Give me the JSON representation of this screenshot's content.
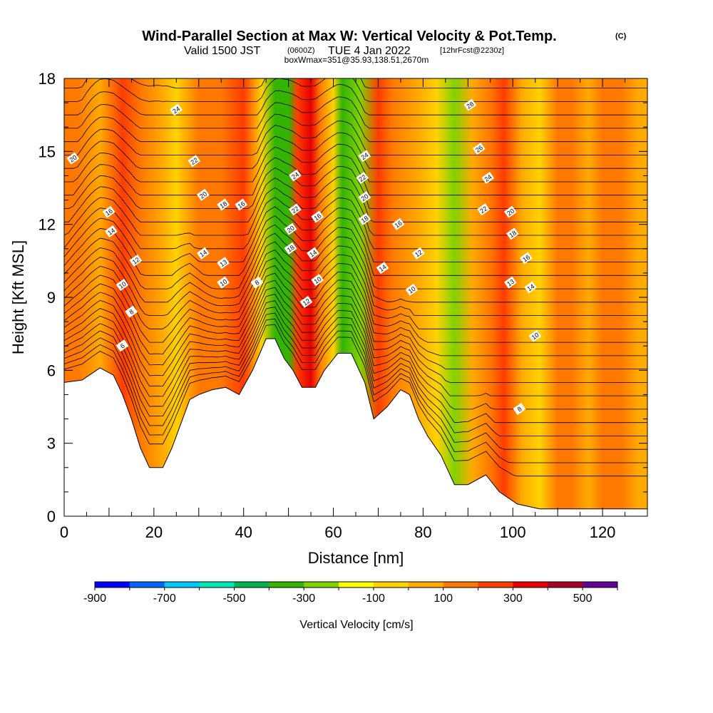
{
  "title": {
    "main": "Wind-Parallel Section at Max W: Vertical Velocity & Pot.Temp.",
    "copyright": "(C)",
    "valid_prefix": "Valid 1500 JST",
    "valid_utc": "(0600Z)",
    "valid_date": "TUE 4 Jan 2022",
    "forecast": "[12hrFcst@2230z]",
    "box": "boxWmax=351@35.93,138.51,2670m"
  },
  "chart_data": {
    "type": "heatmap",
    "xlabel": "Distance [nm]",
    "ylabel": "Height [Kft MSL]",
    "xlim": [
      0,
      130
    ],
    "ylim": [
      0,
      18
    ],
    "x_ticks": [
      0,
      20,
      40,
      60,
      80,
      100,
      120
    ],
    "y_ticks": [
      0,
      3,
      6,
      9,
      12,
      15,
      18
    ],
    "colorbar": {
      "title": "Vertical Velocity [cm/s]",
      "levels": [
        -900,
        -800,
        -700,
        -600,
        -500,
        -400,
        -300,
        -200,
        -100,
        0,
        100,
        200,
        300,
        400,
        500,
        600
      ],
      "tick_labels": [
        -900,
        -700,
        -500,
        -300,
        -100,
        100,
        300,
        500
      ],
      "colors": [
        "#0000ff",
        "#0064ff",
        "#00c8ff",
        "#00e6b4",
        "#00b450",
        "#32b400",
        "#82d200",
        "#ffff00",
        "#ffd200",
        "#ffaa00",
        "#ff7800",
        "#ff3c00",
        "#e60000",
        "#aa0028",
        "#640096"
      ]
    },
    "velocity_bands": [
      {
        "x": 3,
        "w": 180
      },
      {
        "x": 8,
        "w": 30
      },
      {
        "x": 13,
        "w": 260
      },
      {
        "x": 17,
        "w": 160
      },
      {
        "x": 22,
        "w": 30
      },
      {
        "x": 25,
        "w": -80
      },
      {
        "x": 30,
        "w": 160
      },
      {
        "x": 35,
        "w": 120
      },
      {
        "x": 40,
        "w": 200
      },
      {
        "x": 44,
        "w": -50
      },
      {
        "x": 47,
        "w": -310
      },
      {
        "x": 50,
        "w": -330
      },
      {
        "x": 52,
        "w": 280
      },
      {
        "x": 55,
        "w": 351
      },
      {
        "x": 57,
        "w": 150
      },
      {
        "x": 60,
        "w": -40
      },
      {
        "x": 62,
        "w": -330
      },
      {
        "x": 66,
        "w": -300
      },
      {
        "x": 70,
        "w": 220
      },
      {
        "x": 73,
        "w": 110
      },
      {
        "x": 79,
        "w": 80
      },
      {
        "x": 83,
        "w": -80
      },
      {
        "x": 87,
        "w": -210
      },
      {
        "x": 91,
        "w": 80
      },
      {
        "x": 95,
        "w": 150
      },
      {
        "x": 98,
        "w": 260
      },
      {
        "x": 102,
        "w": 80
      },
      {
        "x": 106,
        "w": -60
      },
      {
        "x": 110,
        "w": 100
      },
      {
        "x": 113,
        "w": 180
      },
      {
        "x": 117,
        "w": 30
      },
      {
        "x": 120,
        "w": 140
      },
      {
        "x": 124,
        "w": 160
      },
      {
        "x": 128,
        "w": 20
      }
    ],
    "terrain_height_kft": [
      {
        "x": 0,
        "h": 5.5
      },
      {
        "x": 4,
        "h": 5.6
      },
      {
        "x": 8,
        "h": 6.1
      },
      {
        "x": 11,
        "h": 5.8
      },
      {
        "x": 13,
        "h": 5.0
      },
      {
        "x": 15,
        "h": 4.0
      },
      {
        "x": 17,
        "h": 2.8
      },
      {
        "x": 19,
        "h": 2.0
      },
      {
        "x": 22,
        "h": 2.0
      },
      {
        "x": 24,
        "h": 2.8
      },
      {
        "x": 26,
        "h": 3.8
      },
      {
        "x": 28,
        "h": 4.8
      },
      {
        "x": 30,
        "h": 5.0
      },
      {
        "x": 33,
        "h": 5.2
      },
      {
        "x": 36,
        "h": 5.3
      },
      {
        "x": 39,
        "h": 5.0
      },
      {
        "x": 42,
        "h": 6.0
      },
      {
        "x": 45,
        "h": 7.3
      },
      {
        "x": 47,
        "h": 7.3
      },
      {
        "x": 49,
        "h": 6.5
      },
      {
        "x": 51,
        "h": 6.0
      },
      {
        "x": 53,
        "h": 5.3
      },
      {
        "x": 56,
        "h": 5.3
      },
      {
        "x": 58,
        "h": 6.0
      },
      {
        "x": 61,
        "h": 6.7
      },
      {
        "x": 64,
        "h": 6.7
      },
      {
        "x": 67,
        "h": 5.5
      },
      {
        "x": 69,
        "h": 4.0
      },
      {
        "x": 72,
        "h": 4.5
      },
      {
        "x": 75,
        "h": 5.2
      },
      {
        "x": 77,
        "h": 5.0
      },
      {
        "x": 79,
        "h": 4.0
      },
      {
        "x": 81,
        "h": 3.3
      },
      {
        "x": 84,
        "h": 2.5
      },
      {
        "x": 87,
        "h": 1.3
      },
      {
        "x": 90,
        "h": 1.3
      },
      {
        "x": 94,
        "h": 1.7
      },
      {
        "x": 97,
        "h": 1.0
      },
      {
        "x": 101,
        "h": 0.5
      },
      {
        "x": 106,
        "h": 0.3
      },
      {
        "x": 130,
        "h": 0.3
      }
    ],
    "theta_isentropes": [
      6,
      8,
      10,
      12,
      14,
      16,
      18,
      20,
      22,
      24,
      26,
      28
    ],
    "isentrope_labels": [
      {
        "text": "20",
        "x": 2,
        "y": 14.7
      },
      {
        "text": "24",
        "x": 25,
        "y": 16.7
      },
      {
        "text": "22",
        "x": 29,
        "y": 14.6
      },
      {
        "text": "20",
        "x": 31,
        "y": 13.2
      },
      {
        "text": "18",
        "x": 35.5,
        "y": 12.8
      },
      {
        "text": "16",
        "x": 39.5,
        "y": 12.8
      },
      {
        "text": "16",
        "x": 10,
        "y": 12.5
      },
      {
        "text": "14",
        "x": 10.5,
        "y": 11.7
      },
      {
        "text": "12",
        "x": 16,
        "y": 10.5
      },
      {
        "text": "14",
        "x": 31,
        "y": 10.8
      },
      {
        "text": "13",
        "x": 35.5,
        "y": 10.4
      },
      {
        "text": "10",
        "x": 13,
        "y": 9.5
      },
      {
        "text": "10",
        "x": 35.5,
        "y": 9.6
      },
      {
        "text": "8",
        "x": 43,
        "y": 9.6
      },
      {
        "text": "8",
        "x": 15,
        "y": 8.4
      },
      {
        "text": "6",
        "x": 13,
        "y": 7.0
      },
      {
        "text": "24",
        "x": 51.5,
        "y": 14.0
      },
      {
        "text": "22",
        "x": 51.5,
        "y": 12.6
      },
      {
        "text": "20",
        "x": 50.5,
        "y": 11.8
      },
      {
        "text": "18",
        "x": 50.5,
        "y": 11.0
      },
      {
        "text": "16",
        "x": 56.5,
        "y": 12.3
      },
      {
        "text": "14",
        "x": 55.5,
        "y": 10.8
      },
      {
        "text": "10",
        "x": 56.5,
        "y": 9.7
      },
      {
        "text": "12",
        "x": 54,
        "y": 8.8
      },
      {
        "text": "24",
        "x": 67,
        "y": 14.8
      },
      {
        "text": "22",
        "x": 66.5,
        "y": 13.9
      },
      {
        "text": "20",
        "x": 67,
        "y": 13.1
      },
      {
        "text": "18",
        "x": 67,
        "y": 12.2
      },
      {
        "text": "16",
        "x": 74.5,
        "y": 12.0
      },
      {
        "text": "14",
        "x": 71,
        "y": 10.2
      },
      {
        "text": "12",
        "x": 79,
        "y": 10.8
      },
      {
        "text": "10",
        "x": 77.5,
        "y": 9.3
      },
      {
        "text": "28",
        "x": 90.5,
        "y": 16.9
      },
      {
        "text": "26",
        "x": 92.5,
        "y": 15.1
      },
      {
        "text": "24",
        "x": 94.5,
        "y": 13.9
      },
      {
        "text": "22",
        "x": 93.5,
        "y": 12.6
      },
      {
        "text": "20",
        "x": 99.5,
        "y": 12.5
      },
      {
        "text": "18",
        "x": 100,
        "y": 11.6
      },
      {
        "text": "16",
        "x": 103,
        "y": 10.6
      },
      {
        "text": "13",
        "x": 99.5,
        "y": 9.6
      },
      {
        "text": "14",
        "x": 104,
        "y": 9.4
      },
      {
        "text": "10",
        "x": 105,
        "y": 7.4
      },
      {
        "text": "8",
        "x": 101.5,
        "y": 4.4
      }
    ]
  }
}
